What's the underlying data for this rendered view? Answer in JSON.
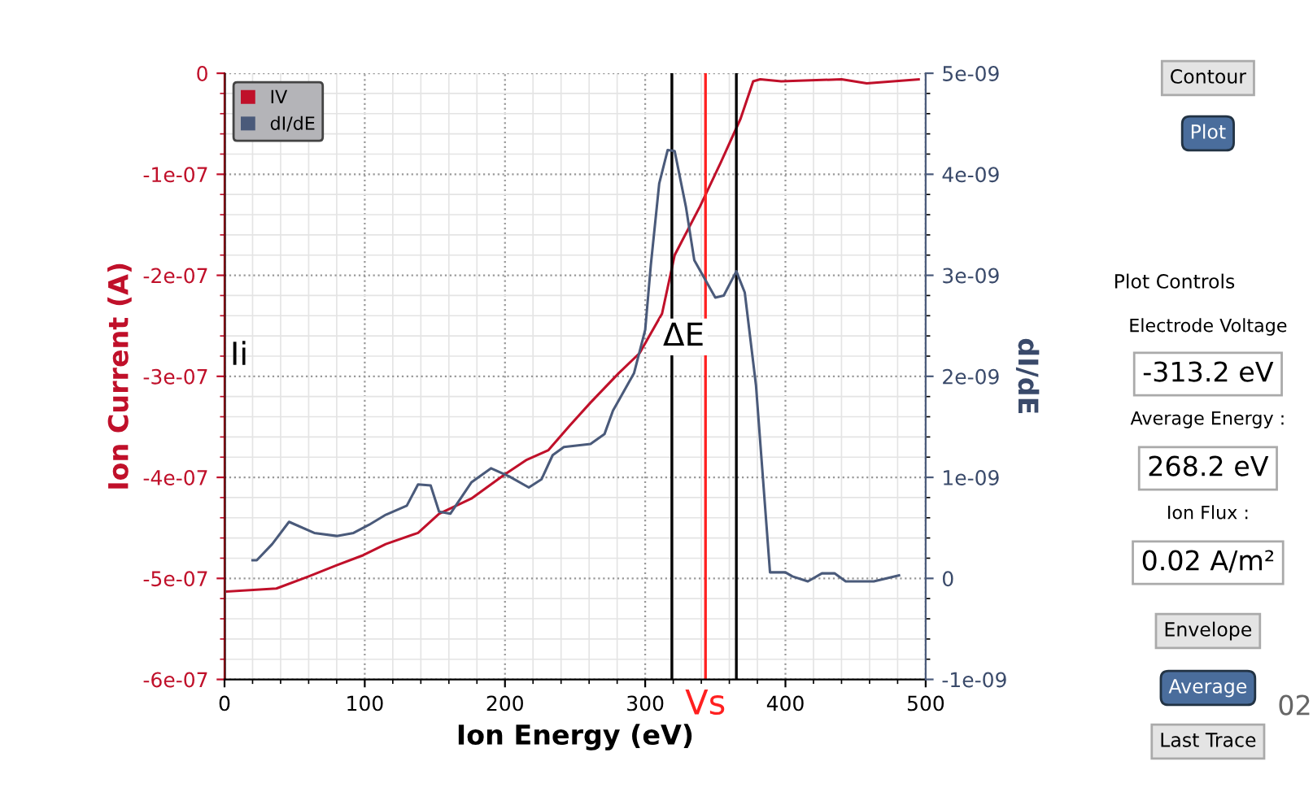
{
  "chart_data": [
    {
      "type": "line",
      "xlabel": "Ion Energy (eV)",
      "ylabel": "Ion Current (A)",
      "y2label": "dI/dE",
      "xlim": [
        0,
        500
      ],
      "xticks": [
        0,
        100,
        200,
        300,
        400,
        500
      ],
      "ylim": [
        -6e-07,
        0
      ],
      "yticks": [
        {
          "value": -6e-07,
          "label": "-6e-07"
        },
        {
          "value": -5e-07,
          "label": "-5e-07"
        },
        {
          "value": -4e-07,
          "label": "-4e-07"
        },
        {
          "value": -3e-07,
          "label": "-3e-07"
        },
        {
          "value": -2e-07,
          "label": "-2e-07"
        },
        {
          "value": -1e-07,
          "label": "-1e-07"
        },
        0
      ],
      "y2lim": [
        -1e-09,
        5e-09
      ],
      "y2ticks": [
        {
          "value": -1e-09,
          "label": "-1e-09"
        },
        0,
        {
          "value": 1e-09,
          "label": "1e-09"
        },
        {
          "value": 2e-09,
          "label": "2e-09"
        },
        {
          "value": 3e-09,
          "label": "3e-09"
        },
        {
          "value": 4e-09,
          "label": "4e-09"
        },
        {
          "value": 5e-09,
          "label": "5e-09"
        }
      ],
      "grid": true,
      "legend": "top left",
      "series": [
        {
          "name": "IV",
          "color": "#c0102a",
          "x": [
            2,
            37,
            60,
            80,
            99,
            115,
            138,
            153,
            176,
            200,
            215,
            231,
            246,
            261,
            281,
            296,
            312,
            321,
            339,
            354,
            368,
            377,
            382,
            397,
            440,
            458,
            495
          ],
          "values": [
            -5.13e-07,
            -5.1e-07,
            -4.98e-07,
            -4.87e-07,
            -4.77e-07,
            -4.66e-07,
            -4.55e-07,
            -4.36e-07,
            -4.21e-07,
            -3.97e-07,
            -3.83e-07,
            -3.73e-07,
            -3.49e-07,
            -3.26e-07,
            -2.97e-07,
            -2.77e-07,
            -2.38e-07,
            -1.8e-07,
            -1.32e-07,
            -8.8e-08,
            -4.5e-08,
            -8e-09,
            -6e-09,
            -8e-09,
            -6e-09,
            -1e-08,
            -6e-09
          ]
        },
        {
          "name": "dI/dE",
          "color": "#4a5a7a",
          "axis": "y2",
          "x": [
            20,
            23,
            34,
            46,
            64,
            80,
            92,
            103,
            115,
            130,
            138,
            147,
            153,
            161,
            176,
            190,
            203,
            217,
            226,
            234,
            242,
            261,
            271,
            277,
            292,
            300,
            304,
            310,
            316,
            321,
            329,
            335,
            350,
            356,
            365,
            371,
            379,
            389,
            400,
            405,
            416,
            426,
            435,
            443,
            463,
            481
          ],
          "values": [
            1.8e-10,
            1.8e-10,
            3.4e-10,
            5.6e-10,
            4.5e-10,
            4.2e-10,
            4.5e-10,
            5.3e-10,
            6.3e-10,
            7.2e-10,
            9.3e-10,
            9.2e-10,
            6.6e-10,
            6.4e-10,
            9.5e-10,
            1.09e-09,
            1.01e-09,
            9e-10,
            9.8e-10,
            1.22e-09,
            1.3e-09,
            1.33e-09,
            1.43e-09,
            1.66e-09,
            2.03e-09,
            2.46e-09,
            3.1e-09,
            3.91e-09,
            4.24e-09,
            4.23e-09,
            3.68e-09,
            3.15e-09,
            2.78e-09,
            2.8e-09,
            3.04e-09,
            2.83e-09,
            1.91e-09,
            6e-11,
            6e-11,
            2e-11,
            -3e-11,
            5e-11,
            5e-11,
            -3e-11,
            -3e-11,
            3e-11
          ]
        }
      ],
      "ref_lines": [
        {
          "axis": "x",
          "value": 0,
          "label": "Ii",
          "color": "#000000"
        },
        {
          "axis": "x",
          "value": 319,
          "label": null,
          "color": "#000000"
        },
        {
          "axis": "x",
          "value": 365,
          "label": null,
          "color": "#000000"
        },
        {
          "axis": "x",
          "value": 343,
          "label": "Vs",
          "color": "#ff2020"
        }
      ],
      "annotations": [
        "ΔE"
      ]
    },
    {
      "type": "other",
      "annotations": [
        "Contour",
        "Plot",
        "Plot Controls",
        "Electrode Voltage",
        "-313.2 eV",
        "Average Energy :",
        "268.2 eV",
        "Ion Flux :",
        "0.02 A/m²",
        "Envelope",
        "Average",
        "Last Trace",
        "02"
      ]
    }
  ]
}
